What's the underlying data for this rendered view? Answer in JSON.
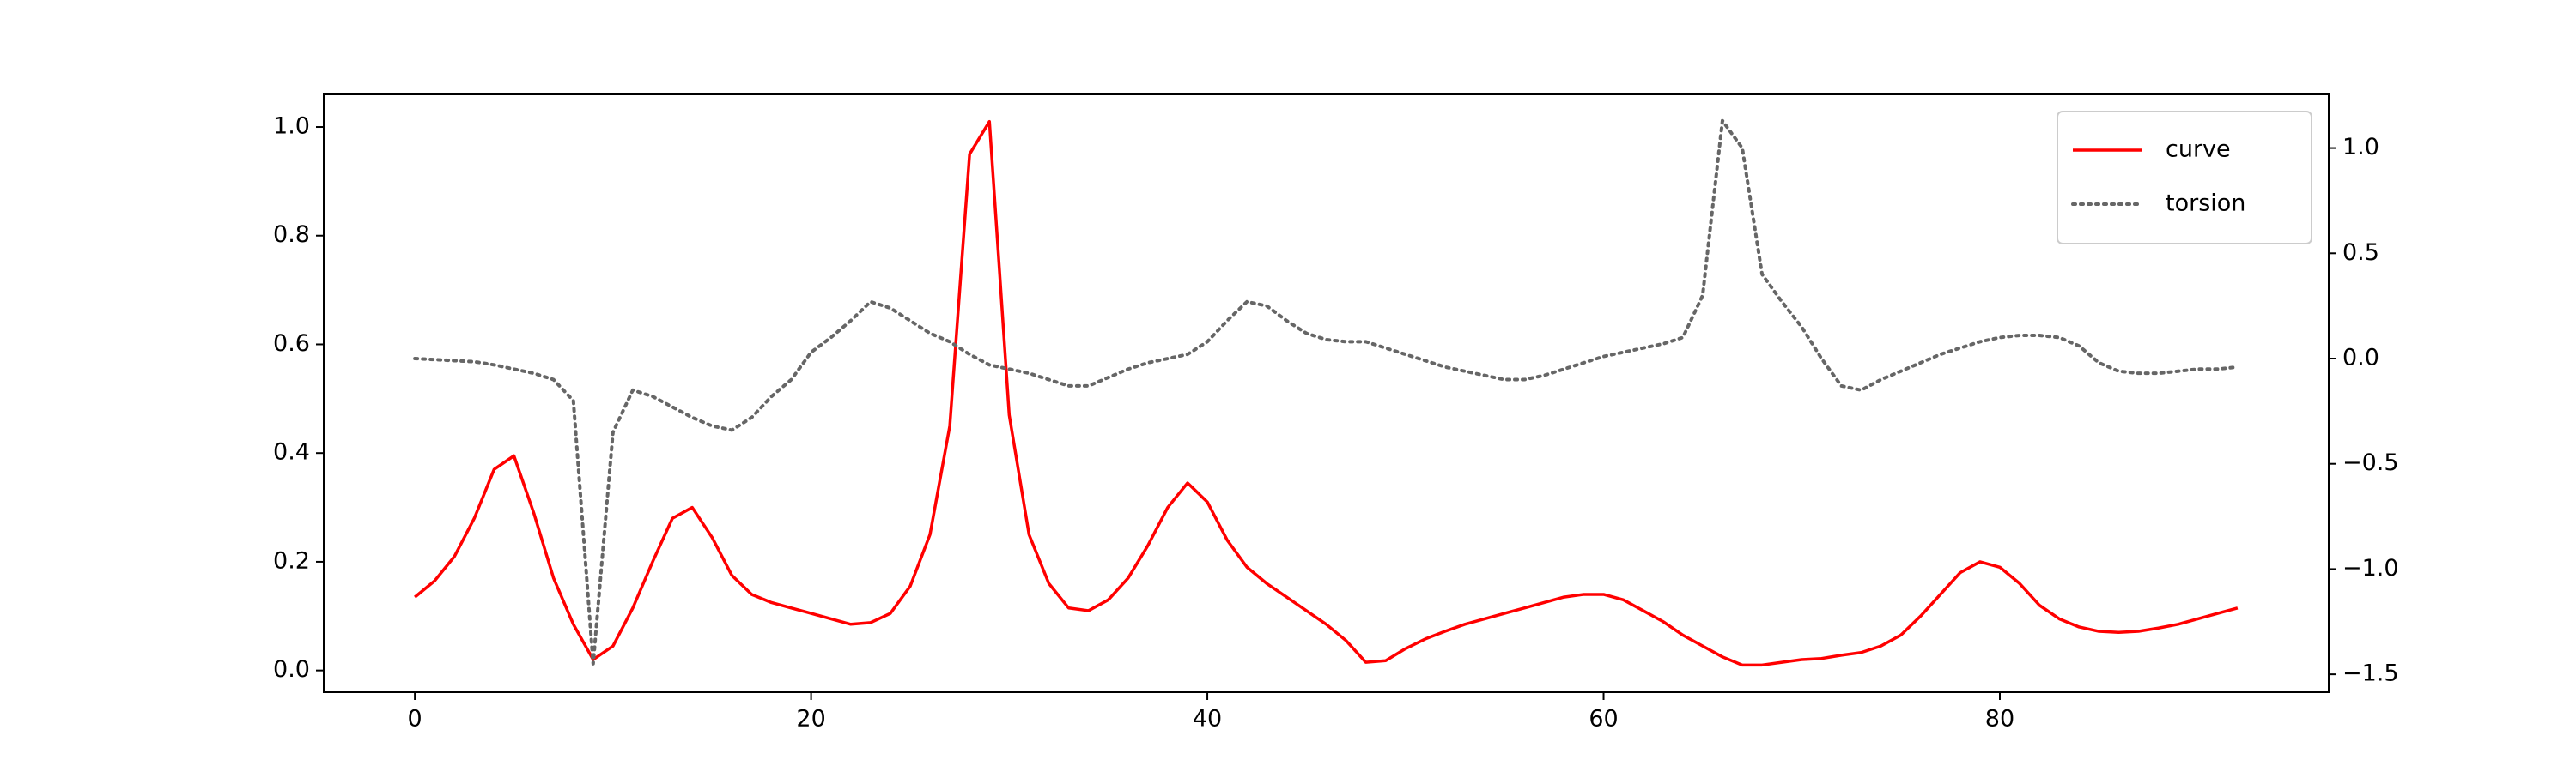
{
  "chart_data": {
    "type": "line",
    "x": [
      0,
      1,
      2,
      3,
      4,
      5,
      6,
      7,
      8,
      9,
      10,
      11,
      12,
      13,
      14,
      15,
      16,
      17,
      18,
      19,
      20,
      21,
      22,
      23,
      24,
      25,
      26,
      27,
      28,
      29,
      30,
      31,
      32,
      33,
      34,
      35,
      36,
      37,
      38,
      39,
      40,
      41,
      42,
      43,
      44,
      45,
      46,
      47,
      48,
      49,
      50,
      51,
      52,
      53,
      54,
      55,
      56,
      57,
      58,
      59,
      60,
      61,
      62,
      63,
      64,
      65,
      66,
      67,
      68,
      69,
      70,
      71,
      72,
      73,
      74,
      75,
      76,
      77,
      78,
      79,
      80,
      81,
      82,
      83,
      84,
      85,
      86,
      87,
      88,
      89,
      90,
      91,
      92
    ],
    "series": [
      {
        "name": "curve",
        "color": "#ff0000",
        "linestyle": "solid",
        "values": [
          0.135,
          0.165,
          0.21,
          0.28,
          0.37,
          0.395,
          0.29,
          0.17,
          0.085,
          0.02,
          0.045,
          0.115,
          0.2,
          0.28,
          0.3,
          0.245,
          0.175,
          0.14,
          0.125,
          0.115,
          0.105,
          0.095,
          0.085,
          0.088,
          0.105,
          0.155,
          0.25,
          0.45,
          0.95,
          1.01,
          0.47,
          0.25,
          0.16,
          0.115,
          0.11,
          0.13,
          0.17,
          0.23,
          0.3,
          0.345,
          0.31,
          0.24,
          0.19,
          0.16,
          0.135,
          0.11,
          0.085,
          0.055,
          0.015,
          0.018,
          0.04,
          0.058,
          0.072,
          0.085,
          0.095,
          0.105,
          0.115,
          0.125,
          0.135,
          0.14,
          0.14,
          0.13,
          0.11,
          0.09,
          0.065,
          0.045,
          0.025,
          0.01,
          0.01,
          0.015,
          0.02,
          0.022,
          0.028,
          0.033,
          0.045,
          0.065,
          0.1,
          0.14,
          0.18,
          0.2,
          0.19,
          0.16,
          0.12,
          0.095,
          0.08,
          0.072,
          0.07,
          0.072,
          0.078,
          0.085,
          0.095,
          0.105,
          0.115
        ]
      },
      {
        "name": "torsion",
        "color": "#666666",
        "linestyle": "dotted",
        "axis": "y2",
        "values": [
          0.0,
          -0.005,
          -0.01,
          -0.015,
          -0.03,
          -0.05,
          -0.07,
          -0.1,
          -0.2,
          -1.45,
          -0.35,
          -0.15,
          -0.18,
          -0.23,
          -0.28,
          -0.32,
          -0.34,
          -0.28,
          -0.18,
          -0.1,
          0.03,
          0.1,
          0.18,
          0.27,
          0.24,
          0.18,
          0.12,
          0.08,
          0.02,
          -0.03,
          -0.05,
          -0.07,
          -0.1,
          -0.13,
          -0.13,
          -0.09,
          -0.05,
          -0.02,
          0.0,
          0.02,
          0.08,
          0.18,
          0.27,
          0.25,
          0.18,
          0.12,
          0.09,
          0.08,
          0.08,
          0.05,
          0.02,
          -0.01,
          -0.04,
          -0.06,
          -0.08,
          -0.1,
          -0.1,
          -0.08,
          -0.05,
          -0.02,
          0.01,
          0.03,
          0.05,
          0.07,
          0.1,
          0.3,
          1.13,
          1.0,
          0.4,
          0.27,
          0.15,
          0.0,
          -0.13,
          -0.15,
          -0.1,
          -0.06,
          -0.02,
          0.02,
          0.05,
          0.08,
          0.1,
          0.11,
          0.11,
          0.1,
          0.06,
          -0.02,
          -0.06,
          -0.07,
          -0.07,
          -0.06,
          -0.05,
          -0.05,
          -0.04
        ]
      }
    ],
    "xlim": [
      -4.6,
      96.6
    ],
    "xticks": [
      0,
      20,
      40,
      60,
      80
    ],
    "ylim": [
      -0.04,
      1.06
    ],
    "yticks": [
      {
        "value": 0,
        "label": "0.0"
      },
      {
        "value": 0.2,
        "label": "0.2"
      },
      {
        "value": 0.4,
        "label": "0.4"
      },
      {
        "value": 0.6,
        "label": "0.6"
      },
      {
        "value": 0.8,
        "label": "0.8"
      },
      {
        "value": 1,
        "label": "1.0"
      }
    ],
    "y2lim": [
      -1.585,
      1.255
    ],
    "y2ticks": [
      {
        "value": -1.5,
        "label": "−1.5"
      },
      {
        "value": -1,
        "label": "−1.0"
      },
      {
        "value": -0.5,
        "label": "−0.5"
      },
      {
        "value": 0,
        "label": "0.0"
      },
      {
        "value": 0.5,
        "label": "0.5"
      },
      {
        "value": 1,
        "label": "1.0"
      }
    ],
    "legend": "upper right"
  }
}
